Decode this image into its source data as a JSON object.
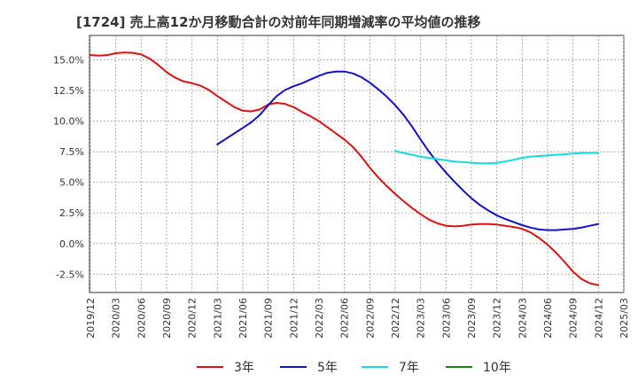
{
  "chart_data": {
    "type": "line",
    "title": "[1724]  売上高12か月移動合計の対前年同期増減率の平均値の推移",
    "xlabel": "",
    "ylabel": "",
    "x_ticks": [
      "2019/12",
      "2020/03",
      "2020/06",
      "2020/09",
      "2020/12",
      "2021/03",
      "2021/06",
      "2021/09",
      "2021/12",
      "2022/03",
      "2022/06",
      "2022/09",
      "2022/12",
      "2023/03",
      "2023/06",
      "2023/09",
      "2023/12",
      "2024/03",
      "2024/06",
      "2024/09",
      "2024/12",
      "2025/03"
    ],
    "y_ticks": [
      "15.0%",
      "12.5%",
      "10.0%",
      "7.5%",
      "5.0%",
      "2.5%",
      "0.0%",
      "-2.5%"
    ],
    "ylim": [
      -4.0,
      17.0
    ],
    "grid": true,
    "legend_position": "bottom",
    "series": [
      {
        "name": "3年",
        "color": "#dd1111",
        "points": [
          [
            "2019/12",
            15.4
          ],
          [
            "2020/01",
            15.35
          ],
          [
            "2020/02",
            15.4
          ],
          [
            "2020/03",
            15.55
          ],
          [
            "2020/04",
            15.6
          ],
          [
            "2020/05",
            15.58
          ],
          [
            "2020/06",
            15.45
          ],
          [
            "2020/07",
            15.1
          ],
          [
            "2020/08",
            14.6
          ],
          [
            "2020/09",
            14.0
          ],
          [
            "2020/10",
            13.55
          ],
          [
            "2020/11",
            13.25
          ],
          [
            "2020/12",
            13.1
          ],
          [
            "2021/01",
            12.9
          ],
          [
            "2021/02",
            12.55
          ],
          [
            "2021/03",
            12.05
          ],
          [
            "2021/04",
            11.6
          ],
          [
            "2021/05",
            11.15
          ],
          [
            "2021/06",
            10.85
          ],
          [
            "2021/07",
            10.8
          ],
          [
            "2021/08",
            10.95
          ],
          [
            "2021/09",
            11.35
          ],
          [
            "2021/10",
            11.5
          ],
          [
            "2021/11",
            11.4
          ],
          [
            "2021/12",
            11.15
          ],
          [
            "2022/01",
            10.75
          ],
          [
            "2022/02",
            10.4
          ],
          [
            "2022/03",
            10.0
          ],
          [
            "2022/04",
            9.5
          ],
          [
            "2022/05",
            9.0
          ],
          [
            "2022/06",
            8.5
          ],
          [
            "2022/07",
            7.9
          ],
          [
            "2022/08",
            7.1
          ],
          [
            "2022/09",
            6.2
          ],
          [
            "2022/10",
            5.4
          ],
          [
            "2022/11",
            4.7
          ],
          [
            "2022/12",
            4.05
          ],
          [
            "2023/01",
            3.45
          ],
          [
            "2023/02",
            2.9
          ],
          [
            "2023/03",
            2.4
          ],
          [
            "2023/04",
            1.95
          ],
          [
            "2023/05",
            1.65
          ],
          [
            "2023/06",
            1.45
          ],
          [
            "2023/07",
            1.4
          ],
          [
            "2023/08",
            1.45
          ],
          [
            "2023/09",
            1.55
          ],
          [
            "2023/10",
            1.6
          ],
          [
            "2023/11",
            1.6
          ],
          [
            "2023/12",
            1.55
          ],
          [
            "2024/01",
            1.45
          ],
          [
            "2024/02",
            1.35
          ],
          [
            "2024/03",
            1.2
          ],
          [
            "2024/04",
            0.9
          ],
          [
            "2024/05",
            0.45
          ],
          [
            "2024/06",
            -0.1
          ],
          [
            "2024/07",
            -0.75
          ],
          [
            "2024/08",
            -1.5
          ],
          [
            "2024/09",
            -2.3
          ],
          [
            "2024/10",
            -2.9
          ],
          [
            "2024/11",
            -3.25
          ],
          [
            "2024/12",
            -3.4
          ]
        ]
      },
      {
        "name": "5年",
        "color": "#1111cc",
        "points": [
          [
            "2021/03",
            8.1
          ],
          [
            "2021/04",
            8.55
          ],
          [
            "2021/05",
            9.0
          ],
          [
            "2021/06",
            9.45
          ],
          [
            "2021/07",
            9.9
          ],
          [
            "2021/08",
            10.5
          ],
          [
            "2021/09",
            11.3
          ],
          [
            "2021/10",
            12.05
          ],
          [
            "2021/11",
            12.55
          ],
          [
            "2021/12",
            12.85
          ],
          [
            "2022/01",
            13.1
          ],
          [
            "2022/02",
            13.4
          ],
          [
            "2022/03",
            13.7
          ],
          [
            "2022/04",
            13.95
          ],
          [
            "2022/05",
            14.05
          ],
          [
            "2022/06",
            14.05
          ],
          [
            "2022/07",
            13.9
          ],
          [
            "2022/08",
            13.6
          ],
          [
            "2022/09",
            13.15
          ],
          [
            "2022/10",
            12.6
          ],
          [
            "2022/11",
            12.0
          ],
          [
            "2022/12",
            11.3
          ],
          [
            "2023/01",
            10.5
          ],
          [
            "2023/02",
            9.55
          ],
          [
            "2023/03",
            8.5
          ],
          [
            "2023/04",
            7.5
          ],
          [
            "2023/05",
            6.6
          ],
          [
            "2023/06",
            5.8
          ],
          [
            "2023/07",
            5.05
          ],
          [
            "2023/08",
            4.35
          ],
          [
            "2023/09",
            3.7
          ],
          [
            "2023/10",
            3.15
          ],
          [
            "2023/11",
            2.7
          ],
          [
            "2023/12",
            2.3
          ],
          [
            "2024/01",
            2.0
          ],
          [
            "2024/02",
            1.75
          ],
          [
            "2024/03",
            1.5
          ],
          [
            "2024/04",
            1.3
          ],
          [
            "2024/05",
            1.15
          ],
          [
            "2024/06",
            1.1
          ],
          [
            "2024/07",
            1.1
          ],
          [
            "2024/08",
            1.15
          ],
          [
            "2024/09",
            1.2
          ],
          [
            "2024/10",
            1.3
          ],
          [
            "2024/11",
            1.45
          ],
          [
            "2024/12",
            1.6
          ]
        ]
      },
      {
        "name": "7年",
        "color": "#11dddd",
        "points": [
          [
            "2022/12",
            7.55
          ],
          [
            "2023/01",
            7.4
          ],
          [
            "2023/02",
            7.25
          ],
          [
            "2023/03",
            7.1
          ],
          [
            "2023/04",
            7.0
          ],
          [
            "2023/05",
            6.9
          ],
          [
            "2023/06",
            6.8
          ],
          [
            "2023/07",
            6.7
          ],
          [
            "2023/08",
            6.65
          ],
          [
            "2023/09",
            6.6
          ],
          [
            "2023/10",
            6.55
          ],
          [
            "2023/11",
            6.55
          ],
          [
            "2023/12",
            6.6
          ],
          [
            "2024/01",
            6.7
          ],
          [
            "2024/02",
            6.85
          ],
          [
            "2024/03",
            7.0
          ],
          [
            "2024/04",
            7.1
          ],
          [
            "2024/05",
            7.15
          ],
          [
            "2024/06",
            7.2
          ],
          [
            "2024/07",
            7.25
          ],
          [
            "2024/08",
            7.3
          ],
          [
            "2024/09",
            7.35
          ],
          [
            "2024/10",
            7.4
          ],
          [
            "2024/11",
            7.4
          ],
          [
            "2024/12",
            7.4
          ]
        ]
      },
      {
        "name": "10年",
        "color": "#118811",
        "points": []
      }
    ]
  }
}
